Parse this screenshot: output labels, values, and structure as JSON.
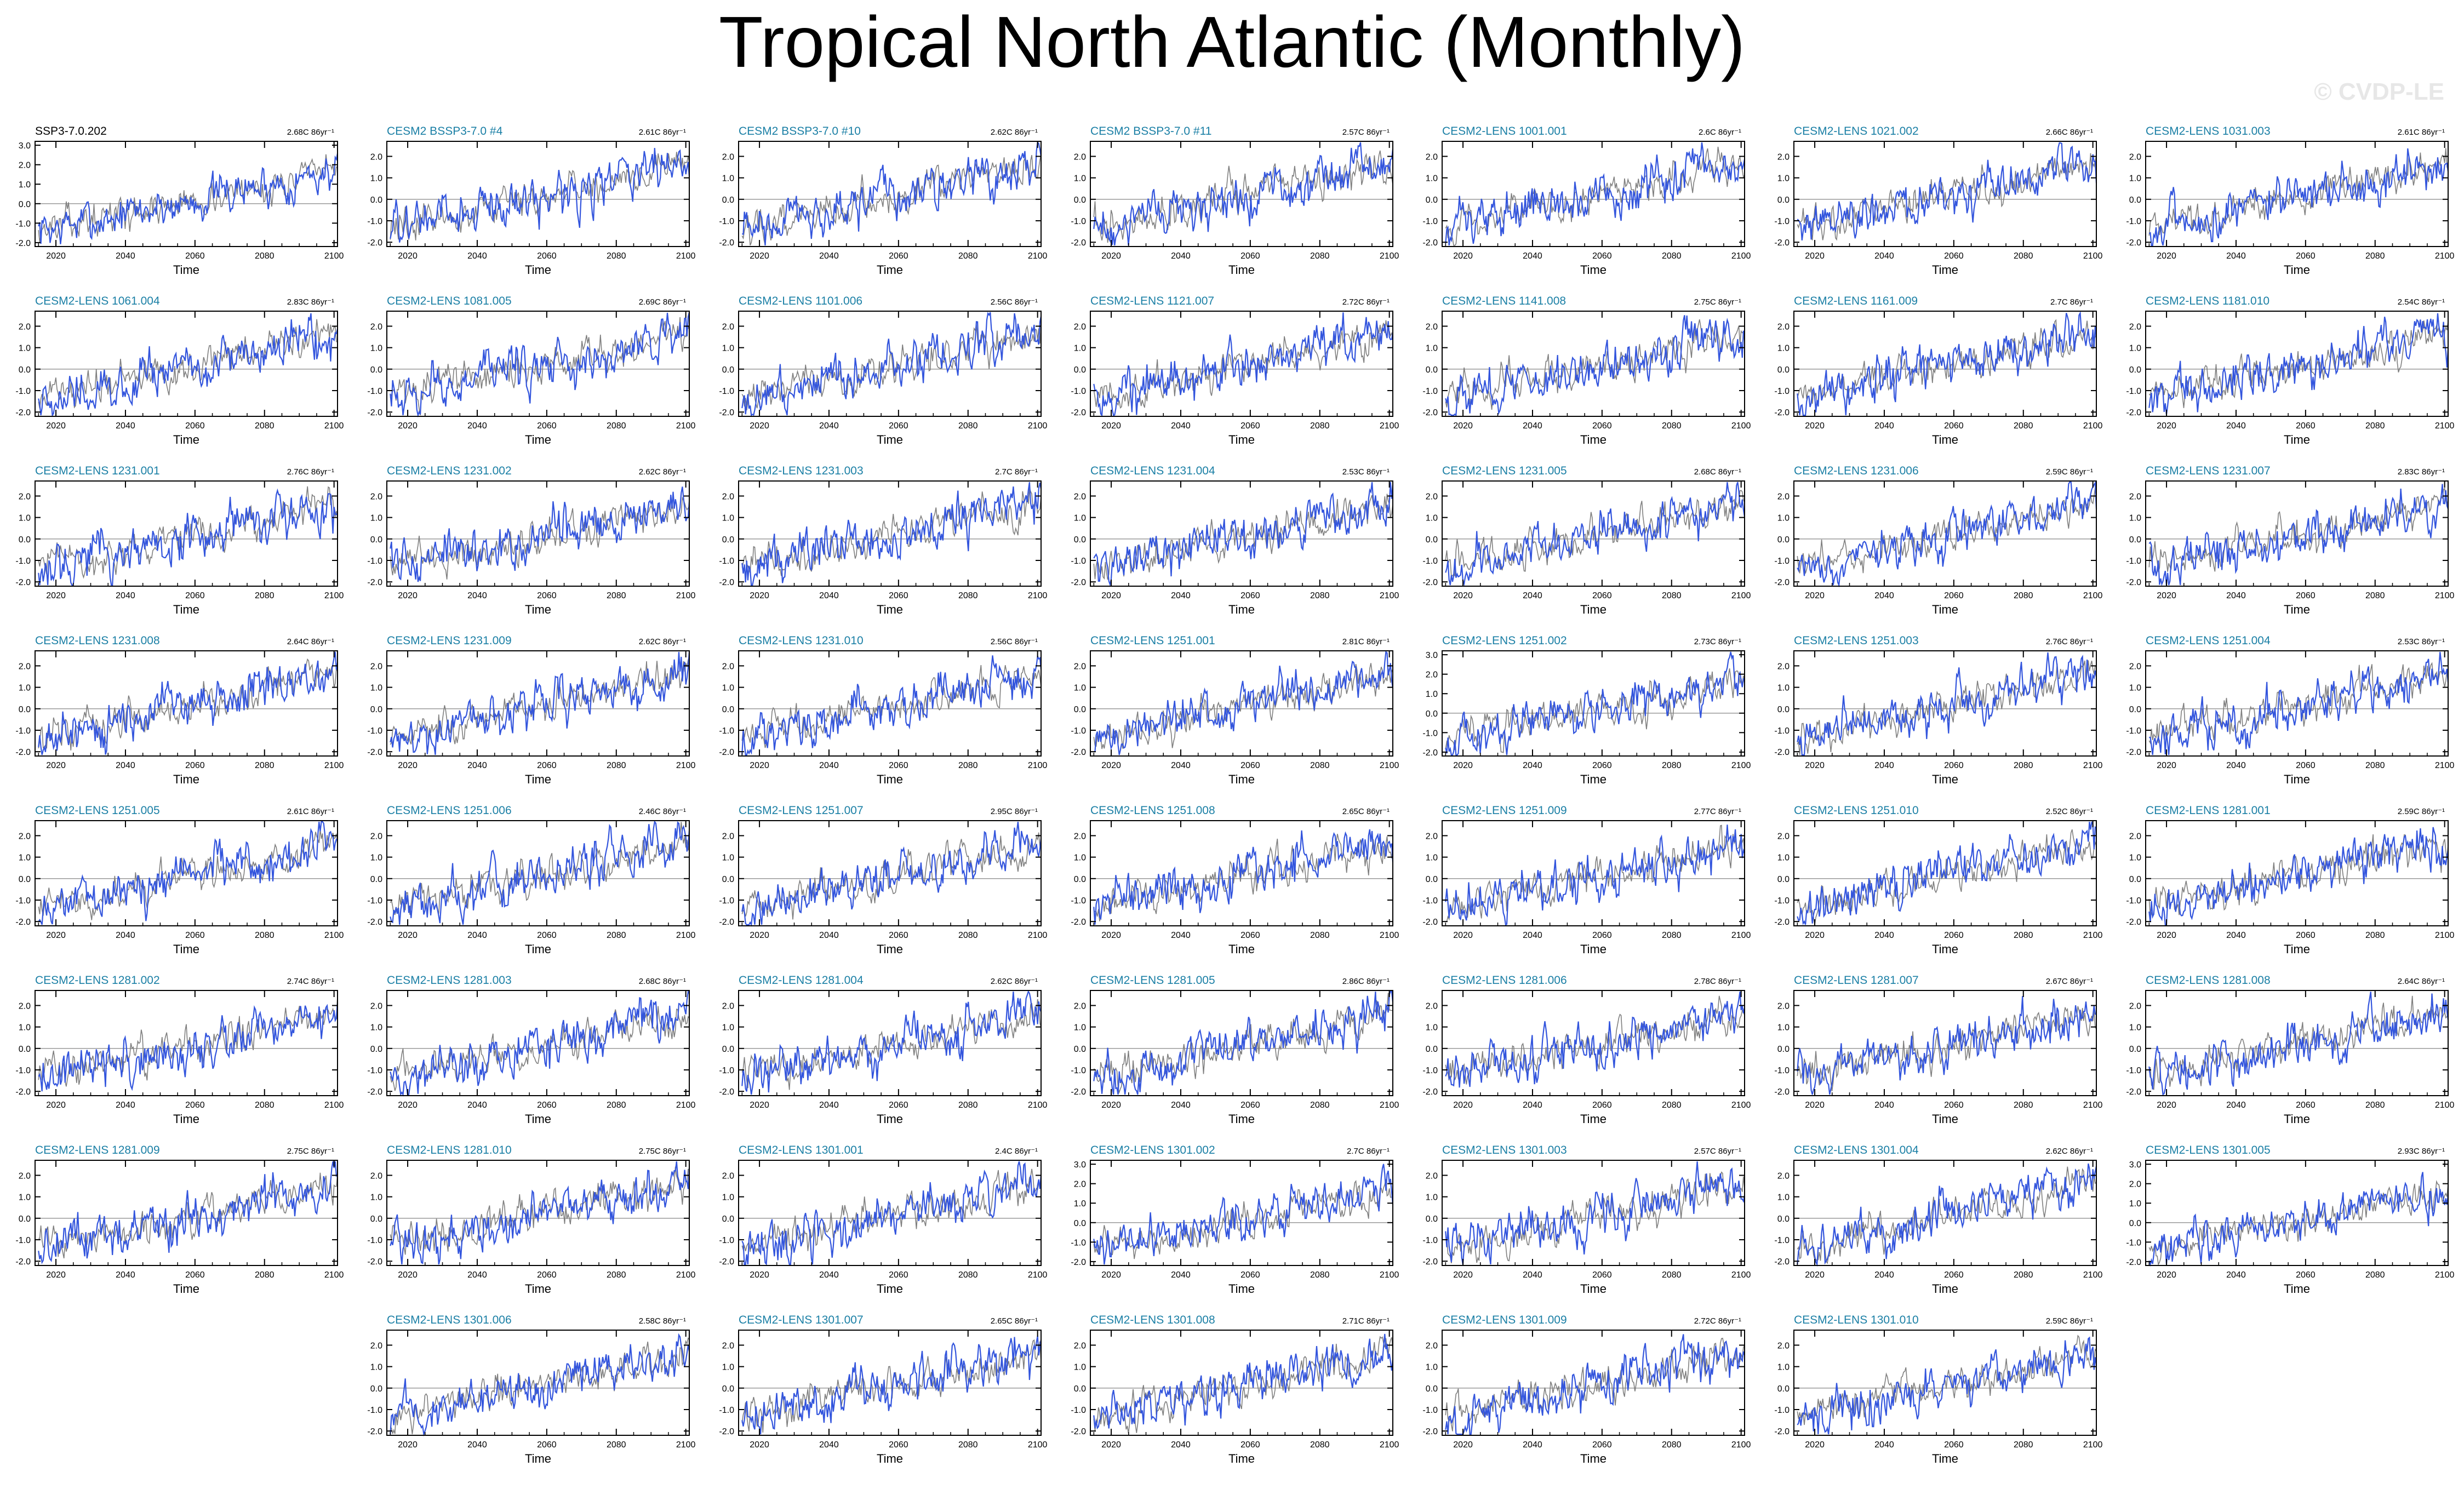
{
  "title": "Tropical North Atlantic (Monthly)",
  "watermark": "© CVDP-LE",
  "colors": {
    "series": "#3355dd",
    "reference": "#7f7f7f",
    "panel_title_first": "#000000",
    "panel_title": "#1a7fa5",
    "axes": "#000000",
    "zero_line": "#9a9a9a"
  },
  "chart_data": {
    "type": "line",
    "layout": {
      "columns": 7,
      "rows": 8
    },
    "shared": {
      "xlabel": "Time",
      "xlim": [
        2014,
        2101
      ],
      "xticks": [
        2020,
        2040,
        2060,
        2080,
        2100
      ],
      "ylabel": "",
      "ylim_default": [
        -2.2,
        2.7
      ],
      "yticks_default": [
        "-2.0",
        "-1.0",
        "0.0",
        "1.0",
        "2.0"
      ],
      "ylim_wide": [
        -2.2,
        3.2
      ],
      "yticks_wide": [
        "-2.0",
        "-1.0",
        "0.0",
        "1.0",
        "2.0",
        "3.0"
      ],
      "series": [
        {
          "role": "member",
          "color": "#3355dd",
          "trend_start": -1.4,
          "trend_end": 1.5,
          "noise": 0.45
        },
        {
          "role": "reference",
          "color": "#7f7f7f",
          "trend_start": -1.3,
          "trend_end": 1.4,
          "noise": 0.35
        }
      ]
    },
    "panels": [
      {
        "title": "SSP3-7.0.202",
        "trend": "2.68C 86yr⁻¹",
        "wide": true
      },
      {
        "title": "CESM2 BSSP3-7.0 #4",
        "trend": "2.61C 86yr⁻¹"
      },
      {
        "title": "CESM2 BSSP3-7.0 #10",
        "trend": "2.62C 86yr⁻¹"
      },
      {
        "title": "CESM2 BSSP3-7.0 #11",
        "trend": "2.57C 86yr⁻¹"
      },
      {
        "title": "CESM2-LENS 1001.001",
        "trend": "2.6C 86yr⁻¹"
      },
      {
        "title": "CESM2-LENS 1021.002",
        "trend": "2.66C 86yr⁻¹"
      },
      {
        "title": "CESM2-LENS 1031.003",
        "trend": "2.61C 86yr⁻¹"
      },
      {
        "title": "CESM2-LENS 1061.004",
        "trend": "2.83C 86yr⁻¹"
      },
      {
        "title": "CESM2-LENS 1081.005",
        "trend": "2.69C 86yr⁻¹"
      },
      {
        "title": "CESM2-LENS 1101.006",
        "trend": "2.56C 86yr⁻¹"
      },
      {
        "title": "CESM2-LENS 1121.007",
        "trend": "2.72C 86yr⁻¹"
      },
      {
        "title": "CESM2-LENS 1141.008",
        "trend": "2.75C 86yr⁻¹"
      },
      {
        "title": "CESM2-LENS 1161.009",
        "trend": "2.7C 86yr⁻¹"
      },
      {
        "title": "CESM2-LENS 1181.010",
        "trend": "2.54C 86yr⁻¹"
      },
      {
        "title": "CESM2-LENS 1231.001",
        "trend": "2.76C 86yr⁻¹"
      },
      {
        "title": "CESM2-LENS 1231.002",
        "trend": "2.62C 86yr⁻¹"
      },
      {
        "title": "CESM2-LENS 1231.003",
        "trend": "2.7C 86yr⁻¹"
      },
      {
        "title": "CESM2-LENS 1231.004",
        "trend": "2.53C 86yr⁻¹"
      },
      {
        "title": "CESM2-LENS 1231.005",
        "trend": "2.68C 86yr⁻¹"
      },
      {
        "title": "CESM2-LENS 1231.006",
        "trend": "2.59C 86yr⁻¹"
      },
      {
        "title": "CESM2-LENS 1231.007",
        "trend": "2.83C 86yr⁻¹"
      },
      {
        "title": "CESM2-LENS 1231.008",
        "trend": "2.64C 86yr⁻¹"
      },
      {
        "title": "CESM2-LENS 1231.009",
        "trend": "2.62C 86yr⁻¹"
      },
      {
        "title": "CESM2-LENS 1231.010",
        "trend": "2.56C 86yr⁻¹"
      },
      {
        "title": "CESM2-LENS 1251.001",
        "trend": "2.81C 86yr⁻¹"
      },
      {
        "title": "CESM2-LENS 1251.002",
        "trend": "2.73C 86yr⁻¹",
        "wide": true
      },
      {
        "title": "CESM2-LENS 1251.003",
        "trend": "2.76C 86yr⁻¹"
      },
      {
        "title": "CESM2-LENS 1251.004",
        "trend": "2.53C 86yr⁻¹"
      },
      {
        "title": "CESM2-LENS 1251.005",
        "trend": "2.61C 86yr⁻¹"
      },
      {
        "title": "CESM2-LENS 1251.006",
        "trend": "2.46C 86yr⁻¹"
      },
      {
        "title": "CESM2-LENS 1251.007",
        "trend": "2.95C 86yr⁻¹"
      },
      {
        "title": "CESM2-LENS 1251.008",
        "trend": "2.65C 86yr⁻¹"
      },
      {
        "title": "CESM2-LENS 1251.009",
        "trend": "2.77C 86yr⁻¹"
      },
      {
        "title": "CESM2-LENS 1251.010",
        "trend": "2.52C 86yr⁻¹"
      },
      {
        "title": "CESM2-LENS 1281.001",
        "trend": "2.59C 86yr⁻¹"
      },
      {
        "title": "CESM2-LENS 1281.002",
        "trend": "2.74C 86yr⁻¹"
      },
      {
        "title": "CESM2-LENS 1281.003",
        "trend": "2.68C 86yr⁻¹"
      },
      {
        "title": "CESM2-LENS 1281.004",
        "trend": "2.62C 86yr⁻¹"
      },
      {
        "title": "CESM2-LENS 1281.005",
        "trend": "2.86C 86yr⁻¹"
      },
      {
        "title": "CESM2-LENS 1281.006",
        "trend": "2.78C 86yr⁻¹"
      },
      {
        "title": "CESM2-LENS 1281.007",
        "trend": "2.67C 86yr⁻¹"
      },
      {
        "title": "CESM2-LENS 1281.008",
        "trend": "2.64C 86yr⁻¹"
      },
      {
        "title": "CESM2-LENS 1281.009",
        "trend": "2.75C 86yr⁻¹"
      },
      {
        "title": "CESM2-LENS 1281.010",
        "trend": "2.75C 86yr⁻¹"
      },
      {
        "title": "CESM2-LENS 1301.001",
        "trend": "2.4C 86yr⁻¹"
      },
      {
        "title": "CESM2-LENS 1301.002",
        "trend": "2.7C 86yr⁻¹",
        "wide": true
      },
      {
        "title": "CESM2-LENS 1301.003",
        "trend": "2.57C 86yr⁻¹"
      },
      {
        "title": "CESM2-LENS 1301.004",
        "trend": "2.62C 86yr⁻¹"
      },
      {
        "title": "CESM2-LENS 1301.005",
        "trend": "2.93C 86yr⁻¹",
        "wide": true
      },
      {
        "title": "CESM2-LENS 1301.006",
        "trend": "2.58C 86yr⁻¹"
      },
      {
        "title": "CESM2-LENS 1301.007",
        "trend": "2.65C 86yr⁻¹"
      },
      {
        "title": "CESM2-LENS 1301.008",
        "trend": "2.71C 86yr⁻¹"
      },
      {
        "title": "CESM2-LENS 1301.009",
        "trend": "2.72C 86yr⁻¹"
      },
      {
        "title": "CESM2-LENS 1301.010",
        "trend": "2.59C 86yr⁻¹"
      }
    ]
  }
}
